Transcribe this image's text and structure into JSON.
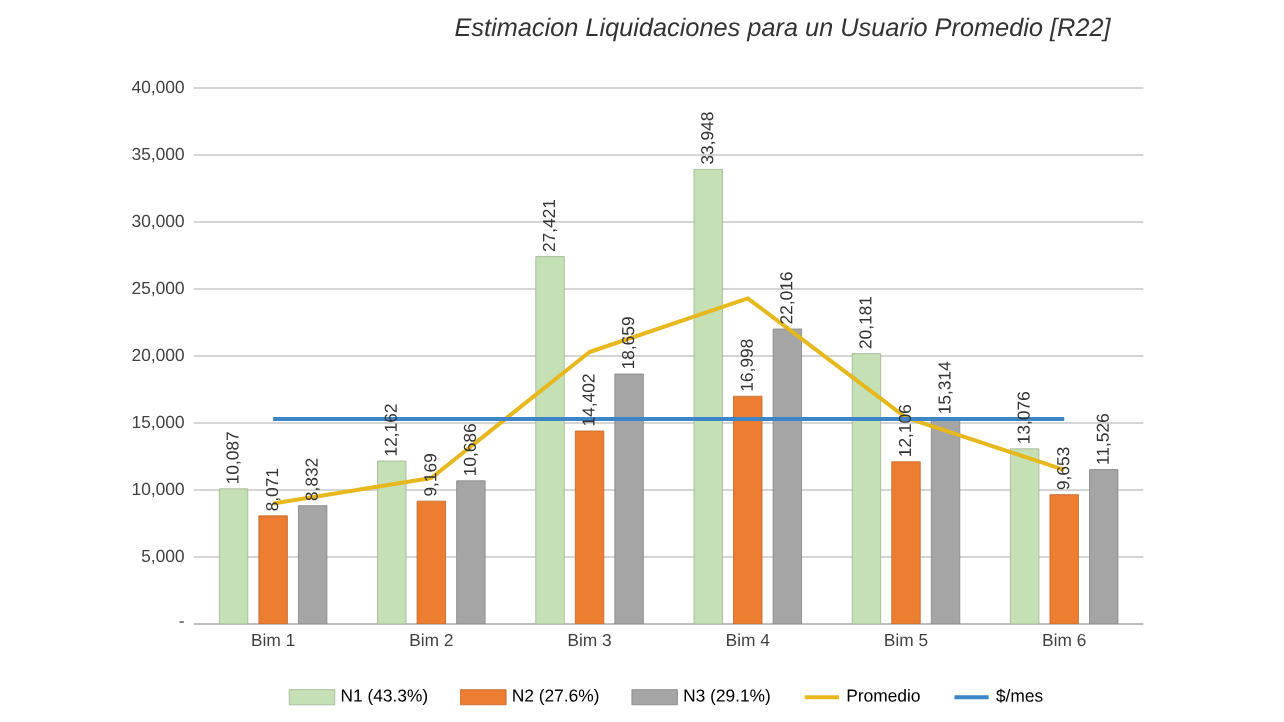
{
  "chart_data": {
    "type": "bar",
    "title": "Estimacion Liquidaciones para un Usuario Promedio [R22]",
    "categories": [
      "Bim 1",
      "Bim 2",
      "Bim 3",
      "Bim 4",
      "Bim 5",
      "Bim 6"
    ],
    "series": [
      {
        "name": "N1 (43.3%)",
        "color": "#c5e0b4",
        "values": [
          10087,
          12162,
          27421,
          33948,
          20181,
          13076
        ],
        "value_labels": [
          "10,087",
          "12,162",
          "27,421",
          "33,948",
          "20,181",
          "13,076"
        ]
      },
      {
        "name": "N2 (27.6%)",
        "color": "#ed7d31",
        "values": [
          8071,
          9169,
          14402,
          16998,
          12106,
          9653
        ],
        "value_labels": [
          "8,071",
          "9,169",
          "14,402",
          "16,998",
          "12,106",
          "9,653"
        ]
      },
      {
        "name": "N3 (29.1%)",
        "color": "#a5a5a5",
        "values": [
          8832,
          10686,
          18659,
          22016,
          15314,
          11526
        ],
        "value_labels": [
          "8,832",
          "10,686",
          "18,659",
          "22,016",
          "15,314",
          "11,526"
        ]
      },
      {
        "name": "Promedio",
        "type": "line",
        "color": "#e6b81e",
        "values": [
          9000,
          10900,
          20300,
          24300,
          15400,
          11500
        ]
      },
      {
        "name": "$/mes",
        "type": "line",
        "color": "#3d85c6",
        "values": [
          15300,
          15300,
          15300,
          15300,
          15300,
          15300
        ]
      }
    ],
    "ylim": [
      0,
      40000
    ],
    "yticks": [
      {
        "value": 0,
        "label": "-"
      },
      {
        "value": 5000,
        "label": "5,000"
      },
      {
        "value": 10000,
        "label": "10,000"
      },
      {
        "value": 15000,
        "label": "15,000"
      },
      {
        "value": 20000,
        "label": "20,000"
      },
      {
        "value": 25000,
        "label": "25,000"
      },
      {
        "value": 30000,
        "label": "30,000"
      },
      {
        "value": 35000,
        "label": "35,000"
      },
      {
        "value": 40000,
        "label": "40,000"
      }
    ],
    "grid": "y",
    "legend": "bottom"
  }
}
